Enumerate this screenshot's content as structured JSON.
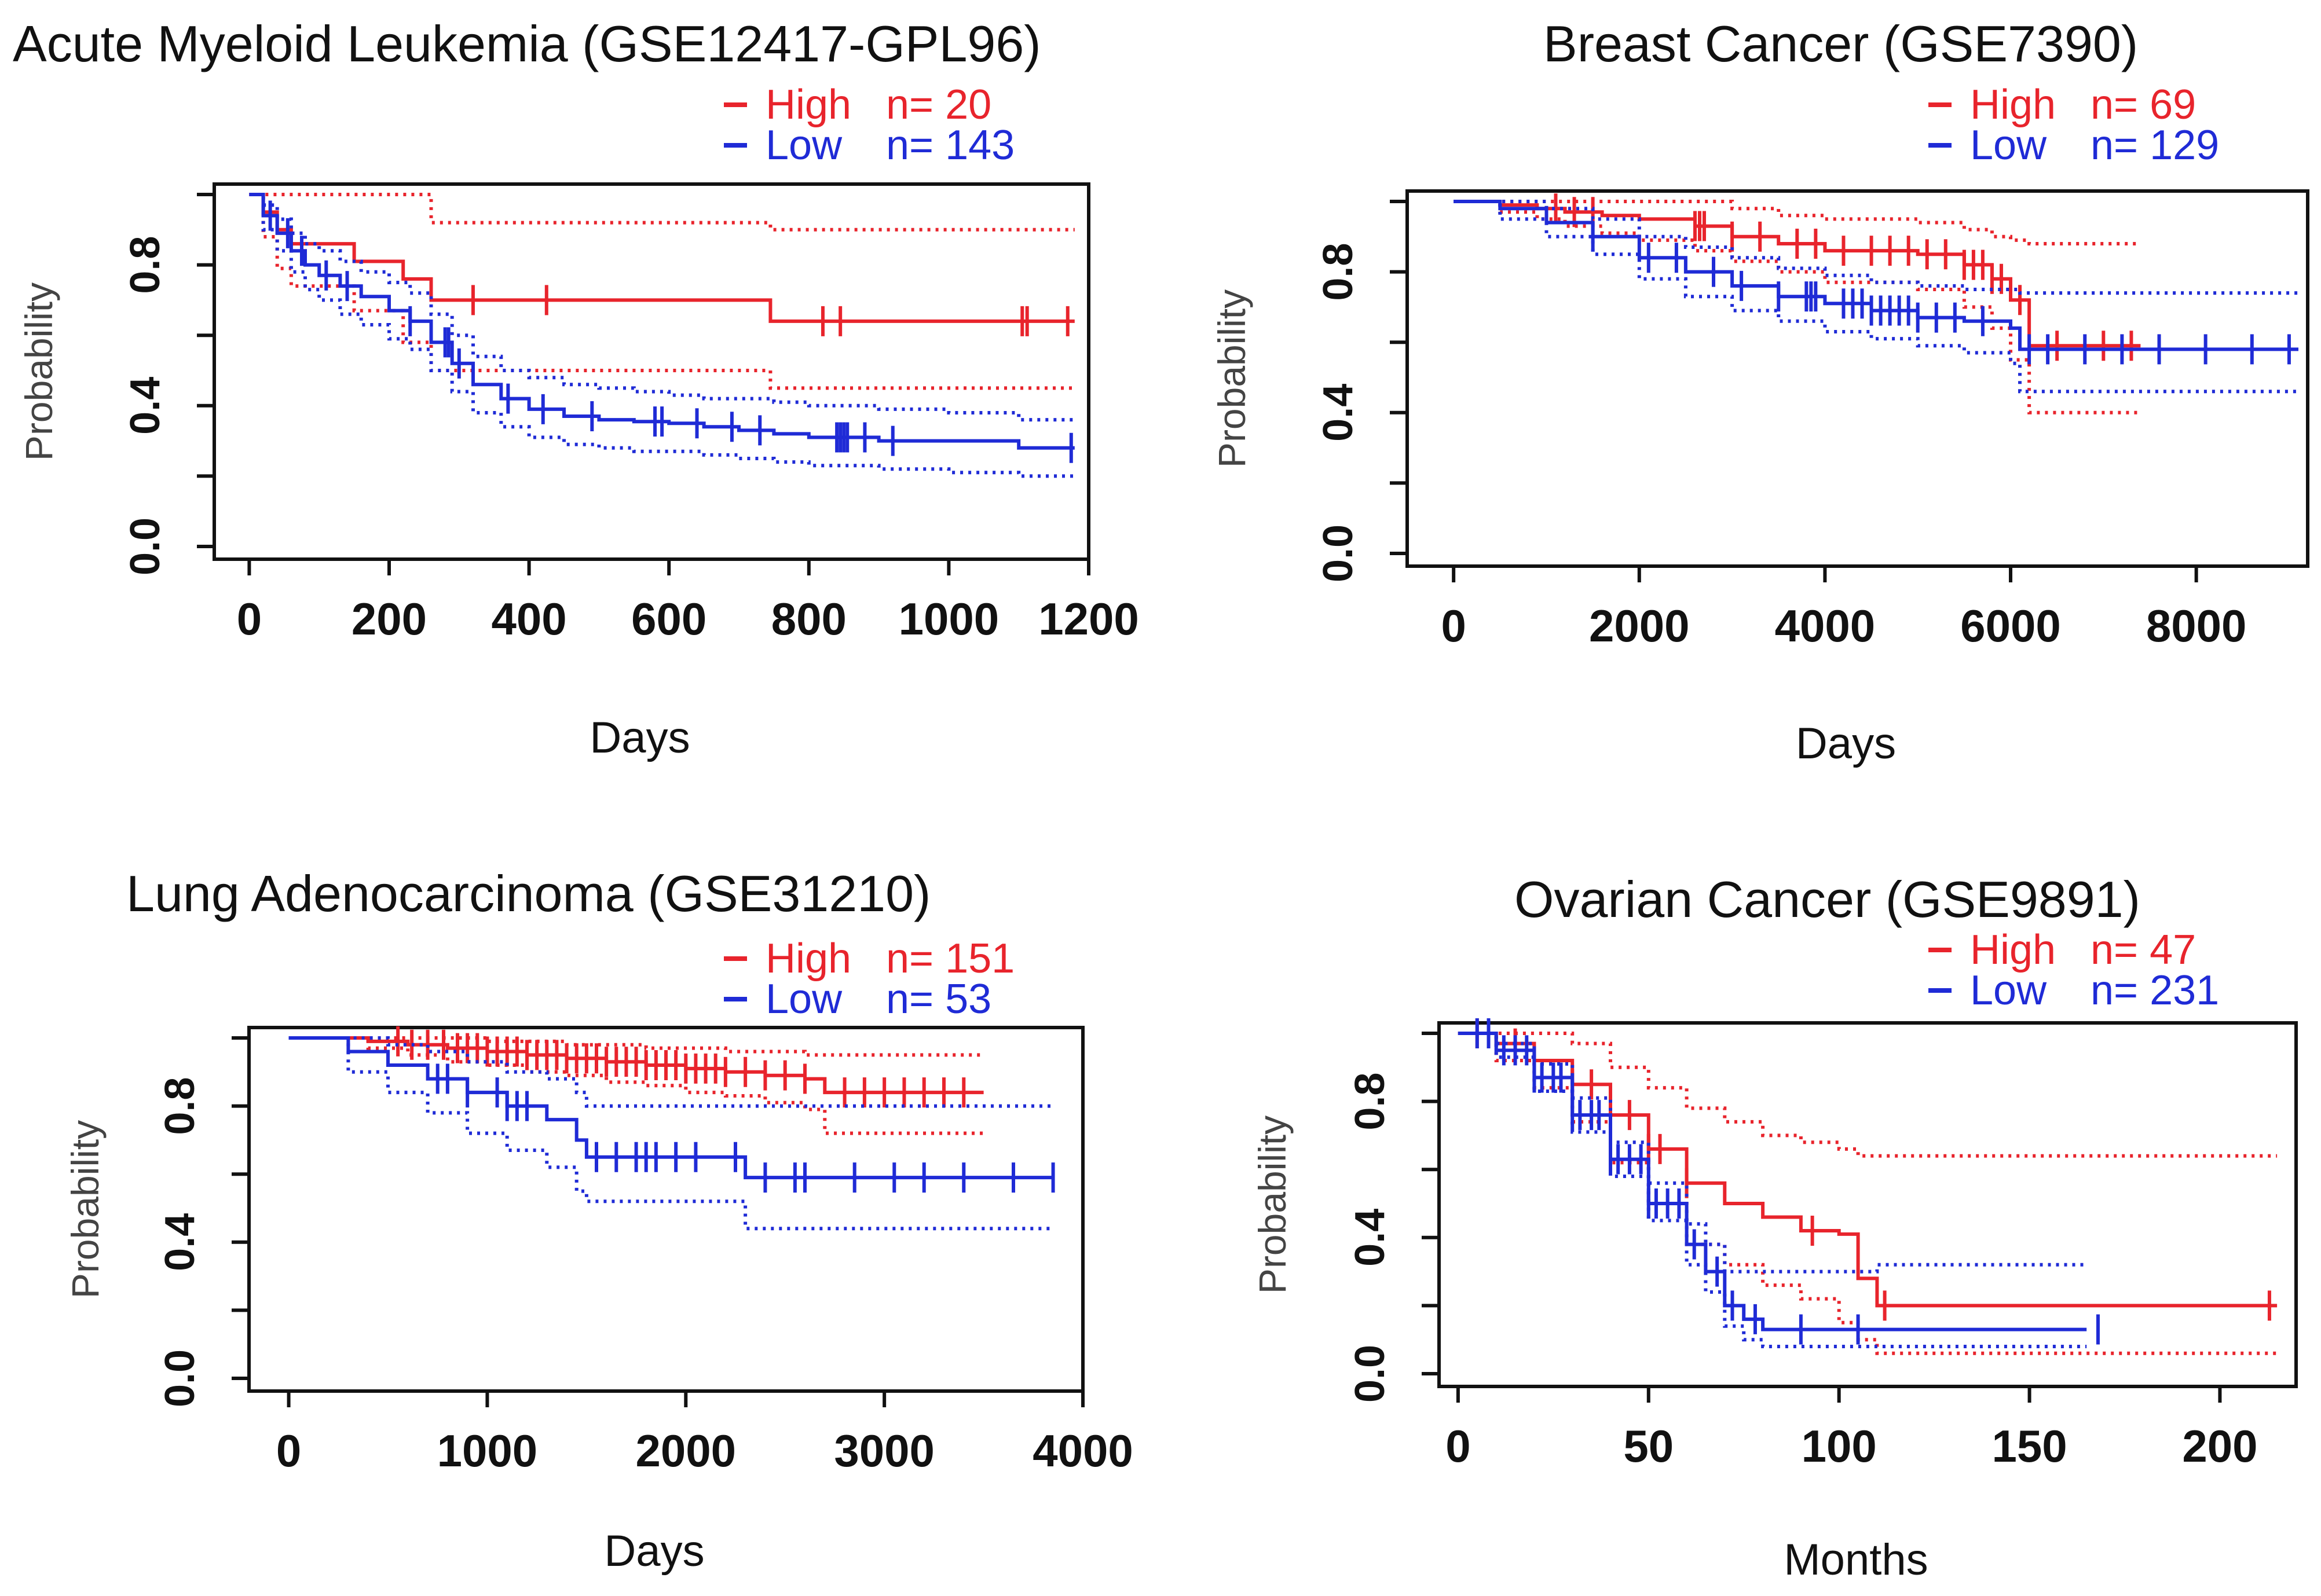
{
  "colors": {
    "high": "#e8242c",
    "low": "#1f2bd6",
    "axis": "#111111"
  },
  "chart_data": [
    {
      "type": "line",
      "title": "Acute Myeloid Leukemia (GSE12417-GPL96)",
      "xlabel": "Days",
      "ylabel": "Probability",
      "xlim": [
        -50,
        1200
      ],
      "ylim": [
        0,
        1
      ],
      "xticks": [
        "0",
        "200",
        "400",
        "600",
        "800",
        "1000",
        "1200"
      ],
      "yticks": [
        "0.0",
        "0.4",
        "0.8"
      ],
      "legend_position": "top-right",
      "series": [
        {
          "name": "High",
          "n_label": "n= 20",
          "x": [
            0,
            20,
            40,
            60,
            150,
            220,
            260,
            745,
            1180
          ],
          "y": [
            1.0,
            0.95,
            0.9,
            0.86,
            0.81,
            0.76,
            0.7,
            0.64,
            0.64
          ],
          "lower": [
            1.0,
            0.88,
            0.79,
            0.74,
            0.67,
            0.58,
            0.5,
            0.45,
            0.45
          ],
          "upper": [
            1.0,
            1.0,
            1.0,
            1.0,
            1.0,
            1.0,
            0.92,
            0.9,
            0.9
          ],
          "censor_x": [
            320,
            425,
            820,
            845,
            1105,
            1112,
            1170
          ]
        },
        {
          "name": "Low",
          "n_label": "n= 143",
          "x": [
            0,
            20,
            40,
            60,
            80,
            100,
            130,
            160,
            200,
            230,
            260,
            290,
            320,
            360,
            400,
            450,
            500,
            550,
            600,
            650,
            700,
            750,
            800,
            900,
            1000,
            1100,
            1180
          ],
          "y": [
            1.0,
            0.94,
            0.89,
            0.84,
            0.8,
            0.77,
            0.74,
            0.71,
            0.67,
            0.64,
            0.58,
            0.52,
            0.46,
            0.42,
            0.39,
            0.37,
            0.36,
            0.355,
            0.35,
            0.34,
            0.33,
            0.32,
            0.31,
            0.3,
            0.3,
            0.28,
            0.28
          ],
          "lower": [
            1.0,
            0.9,
            0.84,
            0.78,
            0.73,
            0.7,
            0.66,
            0.63,
            0.59,
            0.56,
            0.5,
            0.44,
            0.38,
            0.34,
            0.31,
            0.29,
            0.28,
            0.27,
            0.27,
            0.26,
            0.25,
            0.24,
            0.23,
            0.22,
            0.21,
            0.2,
            0.2
          ],
          "upper": [
            1.0,
            0.97,
            0.93,
            0.89,
            0.86,
            0.84,
            0.81,
            0.78,
            0.75,
            0.72,
            0.66,
            0.6,
            0.54,
            0.5,
            0.48,
            0.46,
            0.45,
            0.44,
            0.43,
            0.42,
            0.42,
            0.41,
            0.4,
            0.39,
            0.38,
            0.36,
            0.36
          ],
          "censor_x": [
            30,
            55,
            75,
            110,
            140,
            230,
            280,
            285,
            300,
            370,
            420,
            490,
            580,
            590,
            640,
            690,
            730,
            840,
            845,
            850,
            855,
            880,
            920,
            1175
          ]
        }
      ]
    },
    {
      "type": "line",
      "title": "Breast Cancer (GSE7390)",
      "xlabel": "Days",
      "ylabel": "Probability",
      "xlim": [
        -500,
        9200
      ],
      "ylim": [
        0,
        1
      ],
      "xticks": [
        "0",
        "2000",
        "4000",
        "6000",
        "8000"
      ],
      "yticks": [
        "0.0",
        "0.4",
        "0.8"
      ],
      "legend_position": "top-right",
      "series": [
        {
          "name": "High",
          "n_label": "n= 69",
          "x": [
            0,
            500,
            900,
            1200,
            1600,
            2000,
            2600,
            3000,
            3500,
            4000,
            5000,
            5500,
            5800,
            6000,
            6200,
            7400
          ],
          "y": [
            1.0,
            0.99,
            0.98,
            0.97,
            0.96,
            0.95,
            0.93,
            0.9,
            0.88,
            0.86,
            0.85,
            0.82,
            0.78,
            0.72,
            0.59,
            0.59
          ],
          "lower": [
            1.0,
            0.97,
            0.95,
            0.93,
            0.91,
            0.89,
            0.86,
            0.83,
            0.8,
            0.77,
            0.75,
            0.7,
            0.64,
            0.55,
            0.4,
            0.4
          ],
          "upper": [
            1.0,
            1.0,
            1.0,
            1.0,
            1.0,
            1.0,
            1.0,
            0.98,
            0.96,
            0.95,
            0.94,
            0.92,
            0.9,
            0.89,
            0.88,
            0.88
          ],
          "censor_x": [
            1100,
            1300,
            1500,
            2600,
            2650,
            2700,
            3000,
            3300,
            3700,
            3900,
            4200,
            4500,
            4700,
            4900,
            5100,
            5300,
            5500,
            5600,
            5700,
            5800,
            5900,
            6100,
            6500,
            7000,
            7300
          ]
        },
        {
          "name": "Low",
          "n_label": "n= 129",
          "x": [
            0,
            500,
            1000,
            1500,
            2000,
            2500,
            3000,
            3500,
            4000,
            4500,
            5000,
            5500,
            6000,
            6100,
            9100
          ],
          "y": [
            1.0,
            0.98,
            0.94,
            0.9,
            0.84,
            0.8,
            0.76,
            0.73,
            0.71,
            0.69,
            0.67,
            0.66,
            0.64,
            0.58,
            0.58
          ],
          "lower": [
            1.0,
            0.95,
            0.9,
            0.85,
            0.78,
            0.73,
            0.69,
            0.66,
            0.63,
            0.61,
            0.59,
            0.57,
            0.54,
            0.46,
            0.46
          ],
          "upper": [
            1.0,
            1.0,
            0.98,
            0.95,
            0.9,
            0.87,
            0.84,
            0.81,
            0.79,
            0.77,
            0.76,
            0.75,
            0.75,
            0.74,
            0.74
          ],
          "censor_x": [
            1500,
            2100,
            2400,
            2800,
            3100,
            3500,
            3800,
            3850,
            3900,
            4200,
            4300,
            4400,
            4500,
            4600,
            4700,
            4800,
            4900,
            5000,
            5200,
            5400,
            5700,
            6200,
            6400,
            6800,
            7200,
            7600,
            8100,
            8600,
            9000
          ]
        }
      ]
    },
    {
      "type": "line",
      "title": "Lung Adenocarcinoma (GSE31210)",
      "xlabel": "Days",
      "ylabel": "Probability",
      "xlim": [
        -200,
        4000
      ],
      "ylim": [
        0,
        1
      ],
      "xticks": [
        "0",
        "1000",
        "2000",
        "3000",
        "4000"
      ],
      "yticks": [
        "0.0",
        "0.4",
        "0.8"
      ],
      "legend_position": "top-right",
      "series": [
        {
          "name": "High",
          "n_label": "n= 151",
          "x": [
            0,
            400,
            600,
            800,
            1000,
            1200,
            1400,
            1600,
            1800,
            2000,
            2200,
            2400,
            2600,
            2700,
            3500
          ],
          "y": [
            1.0,
            0.99,
            0.98,
            0.97,
            0.96,
            0.95,
            0.94,
            0.93,
            0.92,
            0.91,
            0.9,
            0.89,
            0.88,
            0.84,
            0.84
          ],
          "lower": [
            1.0,
            0.97,
            0.95,
            0.93,
            0.92,
            0.9,
            0.89,
            0.87,
            0.86,
            0.84,
            0.83,
            0.81,
            0.79,
            0.72,
            0.72
          ],
          "upper": [
            1.0,
            1.0,
            1.0,
            1.0,
            0.99,
            0.99,
            0.98,
            0.98,
            0.97,
            0.97,
            0.96,
            0.96,
            0.95,
            0.95,
            0.95
          ],
          "censor_x": [
            550,
            620,
            700,
            780,
            850,
            900,
            950,
            1000,
            1050,
            1100,
            1150,
            1200,
            1250,
            1300,
            1350,
            1400,
            1450,
            1500,
            1550,
            1600,
            1650,
            1700,
            1750,
            1800,
            1850,
            1900,
            1950,
            2000,
            2050,
            2100,
            2150,
            2200,
            2300,
            2400,
            2500,
            2600,
            2800,
            2900,
            3000,
            3100,
            3200,
            3300,
            3400
          ]
        },
        {
          "name": "Low",
          "n_label": "n= 53",
          "x": [
            0,
            300,
            500,
            700,
            900,
            1100,
            1300,
            1450,
            1500,
            2200,
            2300,
            3850
          ],
          "y": [
            1.0,
            0.96,
            0.92,
            0.88,
            0.84,
            0.8,
            0.76,
            0.7,
            0.65,
            0.65,
            0.59,
            0.59
          ],
          "lower": [
            1.0,
            0.9,
            0.84,
            0.78,
            0.72,
            0.67,
            0.62,
            0.55,
            0.52,
            0.52,
            0.44,
            0.44
          ],
          "upper": [
            1.0,
            1.0,
            0.98,
            0.96,
            0.93,
            0.9,
            0.88,
            0.84,
            0.8,
            0.8,
            0.8,
            0.8
          ],
          "censor_x": [
            750,
            800,
            900,
            1050,
            1100,
            1150,
            1200,
            1550,
            1650,
            1750,
            1800,
            1850,
            1950,
            2050,
            2250,
            2400,
            2550,
            2600,
            2850,
            3050,
            3200,
            3400,
            3650,
            3850
          ]
        }
      ]
    },
    {
      "type": "line",
      "title": "Ovarian Cancer (GSE9891)",
      "xlabel": "Months",
      "ylabel": "Probability",
      "xlim": [
        -5,
        220
      ],
      "ylim": [
        0,
        1
      ],
      "xticks": [
        "0",
        "50",
        "100",
        "150",
        "200"
      ],
      "yticks": [
        "0.0",
        "0.4",
        "0.8"
      ],
      "legend_position": "top-right",
      "series": [
        {
          "name": "High",
          "n_label": "n= 47",
          "x": [
            0,
            10,
            20,
            30,
            40,
            50,
            60,
            70,
            80,
            90,
            100,
            105,
            110,
            215
          ],
          "y": [
            1.0,
            0.97,
            0.92,
            0.85,
            0.76,
            0.66,
            0.56,
            0.5,
            0.46,
            0.42,
            0.41,
            0.28,
            0.2,
            0.2
          ],
          "lower": [
            1.0,
            0.92,
            0.84,
            0.74,
            0.62,
            0.5,
            0.38,
            0.32,
            0.26,
            0.22,
            0.15,
            0.1,
            0.06,
            0.06
          ],
          "upper": [
            1.0,
            1.0,
            1.0,
            0.97,
            0.9,
            0.84,
            0.78,
            0.74,
            0.7,
            0.68,
            0.66,
            0.64,
            0.64,
            0.64
          ],
          "censor_x": [
            5,
            15,
            30,
            35,
            40,
            45,
            50,
            53,
            60,
            93,
            112,
            213
          ]
        },
        {
          "name": "Low",
          "n_label": "n= 231",
          "x": [
            0,
            10,
            20,
            30,
            40,
            50,
            60,
            65,
            70,
            75,
            80,
            110,
            165
          ],
          "y": [
            1.0,
            0.95,
            0.87,
            0.76,
            0.63,
            0.5,
            0.38,
            0.3,
            0.2,
            0.16,
            0.13,
            0.13,
            0.13
          ],
          "lower": [
            1.0,
            0.93,
            0.83,
            0.71,
            0.58,
            0.45,
            0.32,
            0.24,
            0.14,
            0.1,
            0.08,
            0.08,
            0.08
          ],
          "upper": [
            1.0,
            0.97,
            0.91,
            0.81,
            0.68,
            0.56,
            0.44,
            0.38,
            0.3,
            0.3,
            0.3,
            0.32,
            0.32
          ],
          "censor_x": [
            5,
            8,
            12,
            15,
            18,
            20,
            22,
            25,
            27,
            30,
            32,
            35,
            37,
            40,
            42,
            45,
            48,
            50,
            52,
            55,
            58,
            62,
            68,
            72,
            78,
            90,
            105,
            168
          ]
        }
      ]
    }
  ]
}
